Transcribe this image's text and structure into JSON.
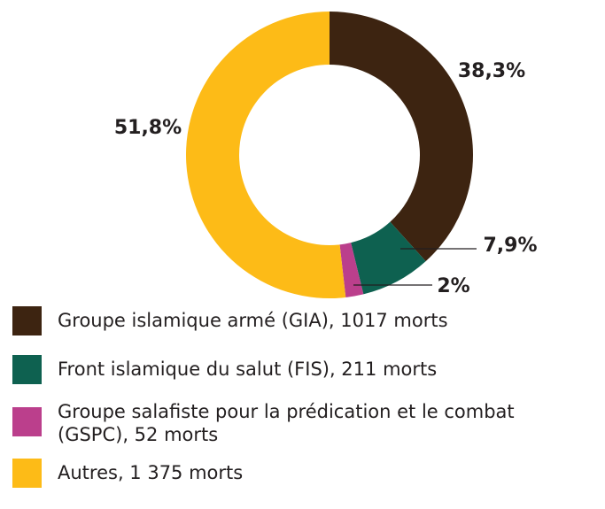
{
  "chart_data": {
    "type": "pie",
    "variant": "donut",
    "categories": [
      "Groupe islamique armé (GIA), 1017 morts",
      "Front islamique du salut (FIS), 211 morts",
      "Groupe salafiste pour la prédication et le combat (GSPC), 52 morts",
      "Autres, 1 375 morts"
    ],
    "values": [
      38.3,
      7.9,
      2.0,
      51.8
    ],
    "deaths": [
      1017,
      211,
      52,
      1375
    ],
    "value_labels": [
      "38,3%",
      "7,9%",
      "2%",
      "51,8%"
    ],
    "colors": [
      "#3d2411",
      "#0e6150",
      "#bb3f8c",
      "#fdbb17"
    ],
    "legend_position": "bottom"
  },
  "legend": {
    "items": [
      {
        "text": "Groupe islamique armé (GIA), 1017 morts",
        "color": "#3d2411"
      },
      {
        "text": "Front islamique du salut (FIS), 211 morts",
        "color": "#0e6150"
      },
      {
        "text": "Groupe salafiste pour la prédication et le combat\n(GSPC), 52 morts",
        "color": "#bb3f8c"
      },
      {
        "text": "Autres, 1 375 morts",
        "color": "#fdbb17"
      }
    ]
  }
}
